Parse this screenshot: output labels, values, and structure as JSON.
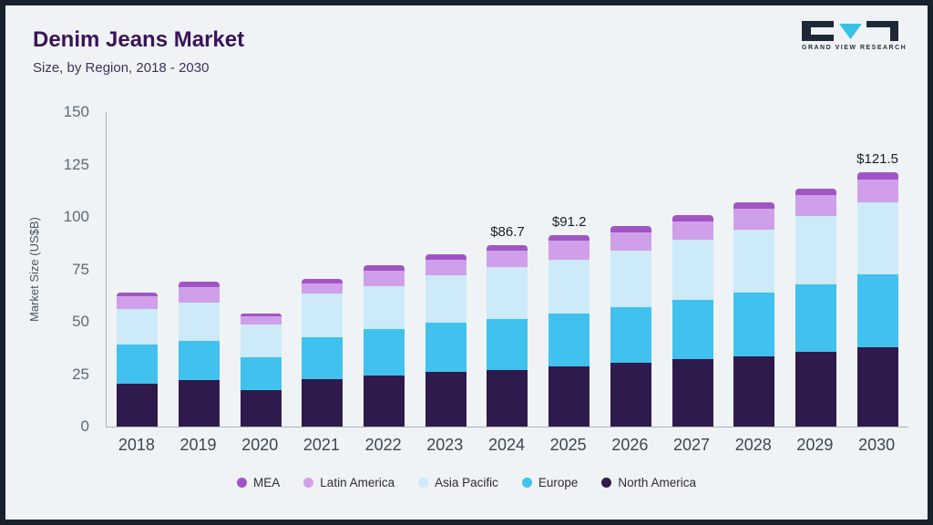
{
  "header": {
    "title": "Denim Jeans Market",
    "subtitle": "Size, by Region, 2018 - 2030",
    "logo_text": "GRAND VIEW RESEARCH"
  },
  "chart_data": {
    "type": "bar",
    "stacked": true,
    "title": "Denim Jeans Market Size, by Region, 2018 - 2030",
    "xlabel": "",
    "ylabel": "Market Size (US$B)",
    "ylim": [
      0,
      150
    ],
    "yticks": [
      0,
      25,
      50,
      75,
      100,
      125,
      150
    ],
    "grid": false,
    "legend_position": "bottom",
    "categories": [
      "2018",
      "2019",
      "2020",
      "2021",
      "2022",
      "2023",
      "2024",
      "2025",
      "2026",
      "2027",
      "2028",
      "2029",
      "2030"
    ],
    "series": [
      {
        "name": "North America",
        "color": "#2f1a4d",
        "values": [
          20.5,
          22,
          17.5,
          22.5,
          24.5,
          26,
          27,
          28.5,
          30.5,
          32,
          33.5,
          35.5,
          38
        ]
      },
      {
        "name": "Europe",
        "color": "#41c1ed",
        "values": [
          18.5,
          19,
          15.5,
          20,
          22,
          23.5,
          24.5,
          25.5,
          26.5,
          28.5,
          30.5,
          32.5,
          34.5
        ]
      },
      {
        "name": "Asia Pacific",
        "color": "#cdeaf8",
        "values": [
          17,
          18,
          15.5,
          21,
          20.5,
          22.5,
          24.5,
          25.5,
          27,
          28.5,
          30,
          32.5,
          34.5
        ]
      },
      {
        "name": "Latin America",
        "color": "#cfa0e9",
        "values": [
          6,
          7.5,
          4,
          5,
          7.5,
          7.5,
          8,
          9,
          8.5,
          9,
          10,
          10,
          11
        ]
      },
      {
        "name": "MEA",
        "color": "#a155c5",
        "values": [
          2,
          2.5,
          1.5,
          2,
          2.5,
          2.5,
          2.7,
          2.7,
          3,
          3,
          3,
          3,
          3.5
        ]
      }
    ],
    "legend": [
      "MEA",
      "Latin America",
      "Asia Pacific",
      "Europe",
      "North America"
    ],
    "bar_labels": {
      "2024": "$86.7",
      "2025": "$91.2",
      "2030": "$121.5"
    },
    "totals": [
      64,
      69,
      54,
      70.5,
      77,
      82,
      86.7,
      91.2,
      95.5,
      101,
      107,
      113.5,
      121.5
    ]
  }
}
